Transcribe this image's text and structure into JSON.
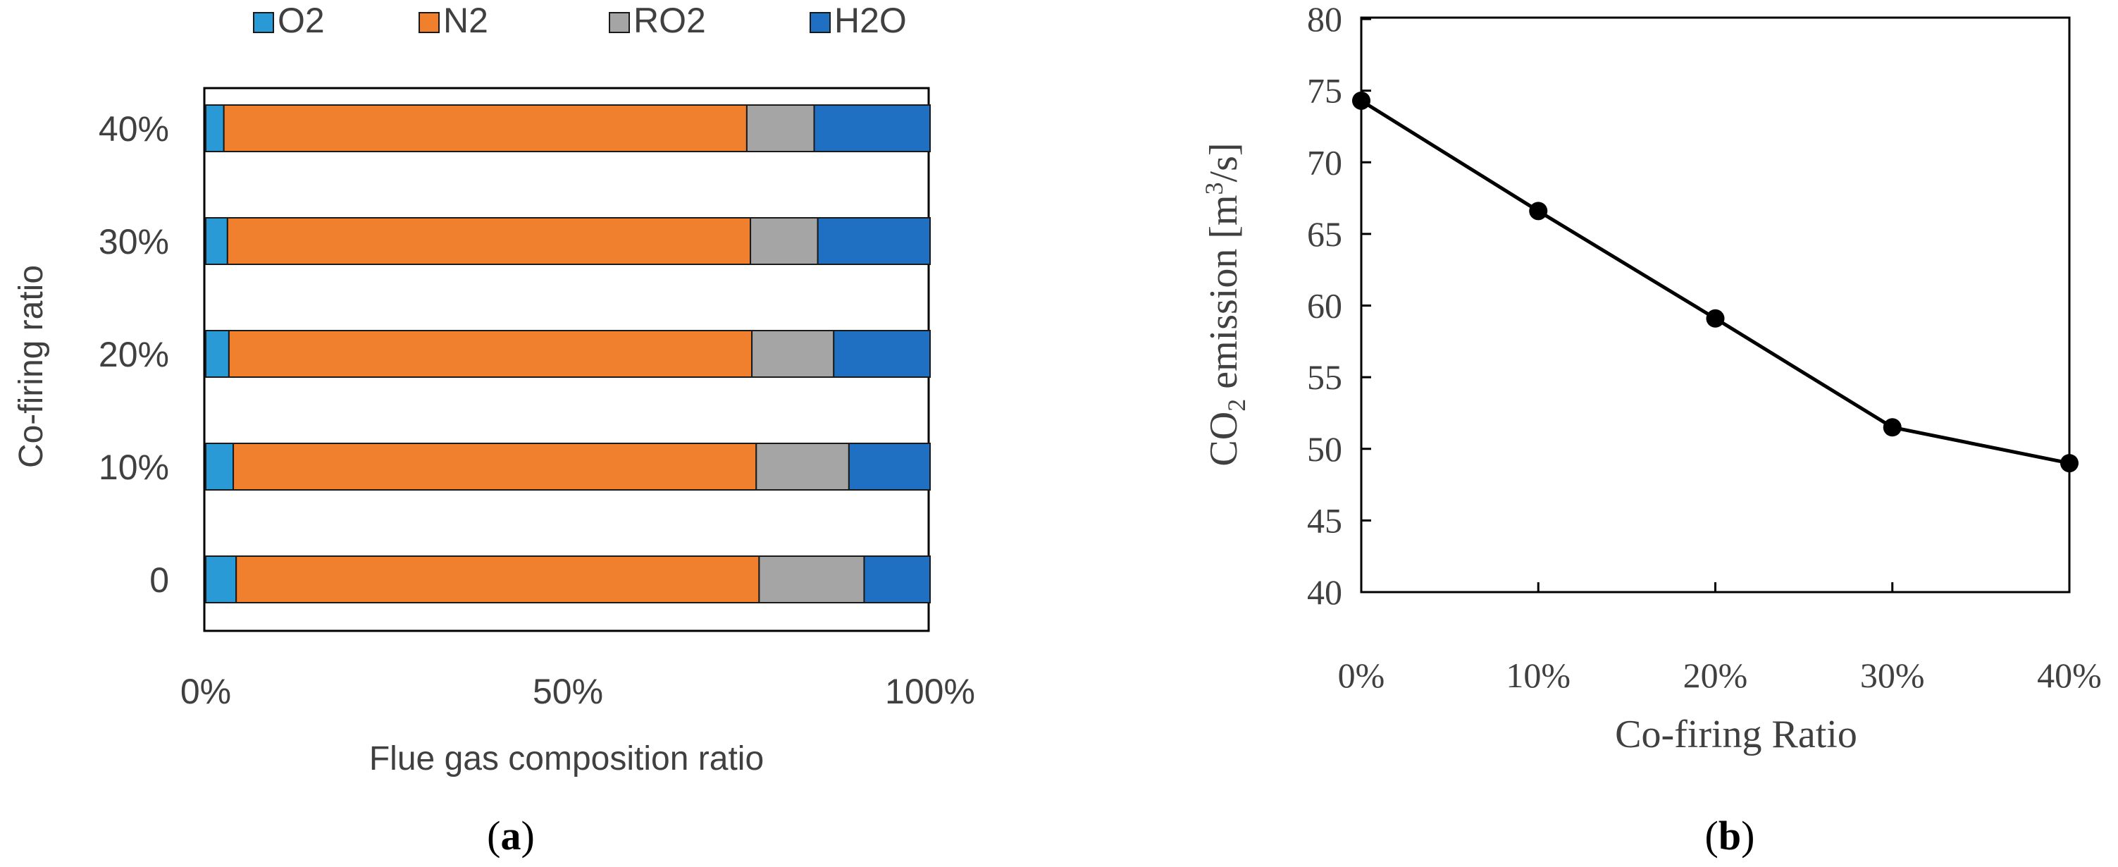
{
  "colors": {
    "O2": "#2a9ad6",
    "N2": "#f07f2e",
    "RO2": "#a5a5a5",
    "H2O": "#1f6fc3",
    "line": "#000000",
    "axis": "#000000"
  },
  "chart_data": [
    {
      "type": "bar",
      "stacked": true,
      "orientation": "horizontal",
      "panel_label": "a",
      "categories": [
        "40%",
        "30%",
        "20%",
        "10%",
        "0"
      ],
      "series": [
        {
          "name": "O2",
          "values": [
            2.5,
            3.0,
            3.2,
            3.8,
            4.2
          ]
        },
        {
          "name": "N2",
          "values": [
            72.2,
            72.2,
            72.2,
            72.2,
            72.2
          ]
        },
        {
          "name": "RO2",
          "values": [
            9.3,
            9.3,
            11.3,
            12.8,
            14.5
          ]
        },
        {
          "name": "H2O",
          "values": [
            16.0,
            15.5,
            13.3,
            11.2,
            9.1
          ]
        }
      ],
      "xlabel": "Flue gas composition ratio",
      "ylabel": "Co-firing  ratio",
      "xticks": [
        "0%",
        "50%",
        "100%"
      ],
      "xlim": [
        0,
        100
      ],
      "legend": [
        "O2",
        "N2",
        "RO2",
        "H2O"
      ],
      "legend_position": "top"
    },
    {
      "type": "line",
      "panel_label": "b",
      "x": [
        "0%",
        "10%",
        "20%",
        "30%",
        "40%"
      ],
      "values": [
        74.3,
        66.6,
        59.1,
        51.5,
        49.0
      ],
      "xlabel": "Co-firing Ratio",
      "ylabel_parts": [
        "CO",
        "2",
        " emission [m",
        "3",
        "/s]"
      ],
      "ylim": [
        40,
        80
      ],
      "yticks": [
        "40",
        "45",
        "50",
        "55",
        "60",
        "65",
        "70",
        "75",
        "80"
      ]
    }
  ],
  "captions": {
    "a": {
      "open": "(",
      "letter": "a",
      "close": ")"
    },
    "b": {
      "open": "(",
      "letter": "b",
      "close": ")"
    }
  }
}
